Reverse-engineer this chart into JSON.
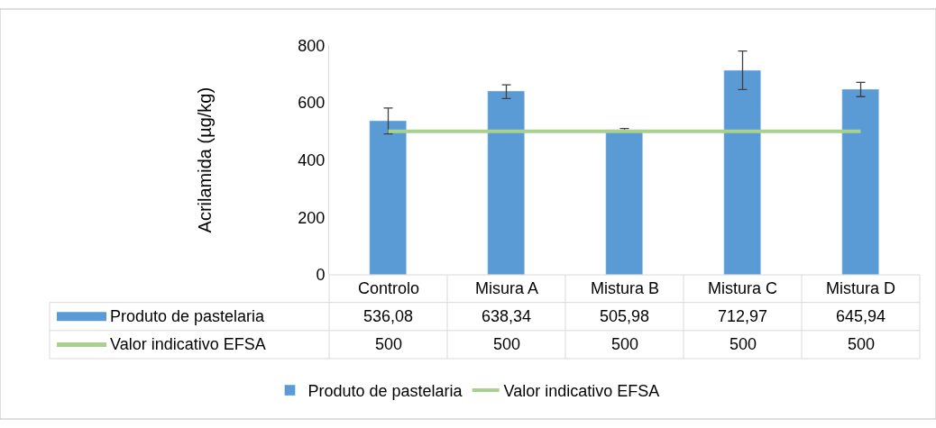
{
  "chart_data": {
    "type": "bar",
    "ylabel": "Acrilamida (µg/kg)",
    "categories": [
      "Controlo",
      "Misura A",
      "Mistura B",
      "Mistura C",
      "Mistura D"
    ],
    "series": [
      {
        "name": "Produto de pastelaria",
        "color": "#5b9bd5",
        "values": [
          536.08,
          638.34,
          505.98,
          712.97,
          645.94
        ],
        "errors": [
          45,
          24,
          4,
          67,
          25
        ],
        "value_labels": [
          "536,08",
          "638,34",
          "505,98",
          "712,97",
          "645,94"
        ]
      },
      {
        "name": "Valor indicativo EFSA",
        "type": "line",
        "color": "#a9d18e",
        "values": [
          500,
          500,
          500,
          500,
          500
        ],
        "value_labels": [
          "500",
          "500",
          "500",
          "500",
          "500"
        ]
      }
    ],
    "ylim": [
      0,
      800
    ],
    "yticks": [
      0,
      200,
      400,
      600,
      800
    ],
    "grid": false,
    "legend": "bottom",
    "marker": "none",
    "line_style": "solid"
  }
}
